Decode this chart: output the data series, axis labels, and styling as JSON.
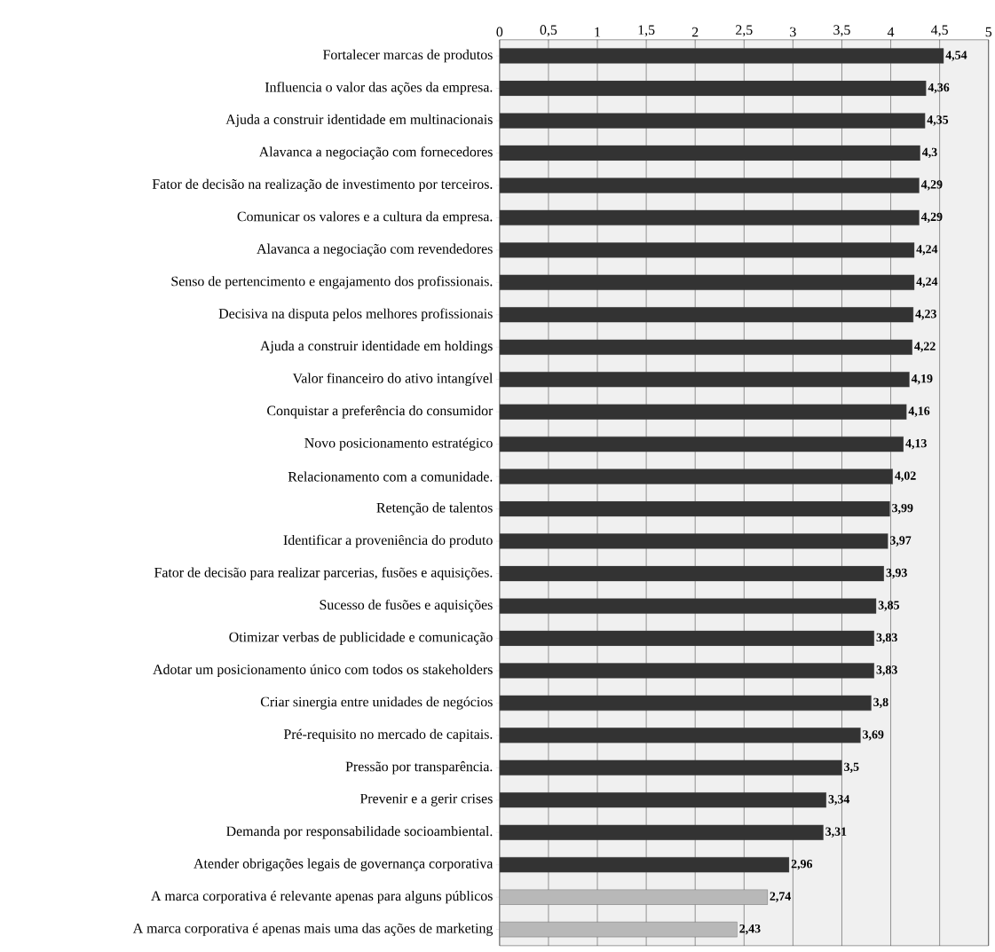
{
  "chart_data": {
    "type": "bar",
    "orientation": "horizontal",
    "categories": [
      "Fortalecer marcas de produtos",
      "Influencia o valor das ações da empresa.",
      "Ajuda a construir identidade em multinacionais",
      "Alavanca a negociação com fornecedores",
      "Fator de decisão na realização de investimento por terceiros.",
      "Comunicar os valores e a cultura da empresa.",
      "Alavanca a negociação com revendedores",
      "Senso de pertencimento e engajamento dos profissionais.",
      "Decisiva na disputa pelos melhores profissionais",
      "Ajuda a construir identidade em holdings",
      "Valor financeiro do ativo intangível",
      "Conquistar a preferência do consumidor",
      "Novo posicionamento estratégico",
      "Relacionamento com a comunidade.",
      "Retenção de talentos",
      "Identificar a proveniência do produto",
      "Fator de decisão para realizar parcerias, fusões e aquisições.",
      "Sucesso de fusões e aquisições",
      "Otimizar verbas de publicidade e comunicação",
      "Adotar um posicionamento único com todos os stakeholders",
      "Criar sinergia entre unidades de negócios",
      "Pré-requisito no mercado de capitais.",
      "Pressão por transparência.",
      "Prevenir e a gerir crises",
      "Demanda por responsabilidade socioambiental.",
      "Atender obrigações legais de governança corporativa",
      "A marca corporativa é relevante apenas para alguns públicos",
      "A marca corporativa é apenas mais uma das ações de marketing"
    ],
    "values": [
      4.54,
      4.36,
      4.35,
      4.3,
      4.29,
      4.29,
      4.24,
      4.24,
      4.23,
      4.22,
      4.19,
      4.16,
      4.13,
      4.02,
      3.99,
      3.97,
      3.93,
      3.85,
      3.83,
      3.83,
      3.8,
      3.69,
      3.5,
      3.34,
      3.31,
      2.96,
      2.74,
      2.43
    ],
    "value_labels": [
      "4,54",
      "4,36",
      "4,35",
      "4,3",
      "4,29",
      "4,29",
      "4,24",
      "4,24",
      "4,23",
      "4,22",
      "4,19",
      "4,16",
      "4,13",
      "4,02",
      "3,99",
      "3,97",
      "3,93",
      "3,85",
      "3,83",
      "3,83",
      "3,8",
      "3,69",
      "3,5",
      "3,34",
      "3,31",
      "2,96",
      "2,74",
      "2,43"
    ],
    "colors": [
      "#333333",
      "#333333",
      "#333333",
      "#333333",
      "#333333",
      "#333333",
      "#333333",
      "#333333",
      "#333333",
      "#333333",
      "#333333",
      "#333333",
      "#333333",
      "#333333",
      "#333333",
      "#333333",
      "#333333",
      "#333333",
      "#333333",
      "#333333",
      "#333333",
      "#333333",
      "#333333",
      "#333333",
      "#333333",
      "#333333",
      "#b8b8b8",
      "#b8b8b8"
    ],
    "xlim": [
      0,
      5
    ],
    "xticks": [
      0,
      {
        "value": 0.5,
        "label": "0,5"
      },
      1,
      {
        "value": 1.5,
        "label": "1,5"
      },
      2,
      {
        "value": 2.5,
        "label": "2,5"
      },
      3,
      {
        "value": 3.5,
        "label": "3,5"
      },
      4,
      {
        "value": 4.5,
        "label": "4,5"
      },
      5
    ],
    "grid": "x"
  }
}
